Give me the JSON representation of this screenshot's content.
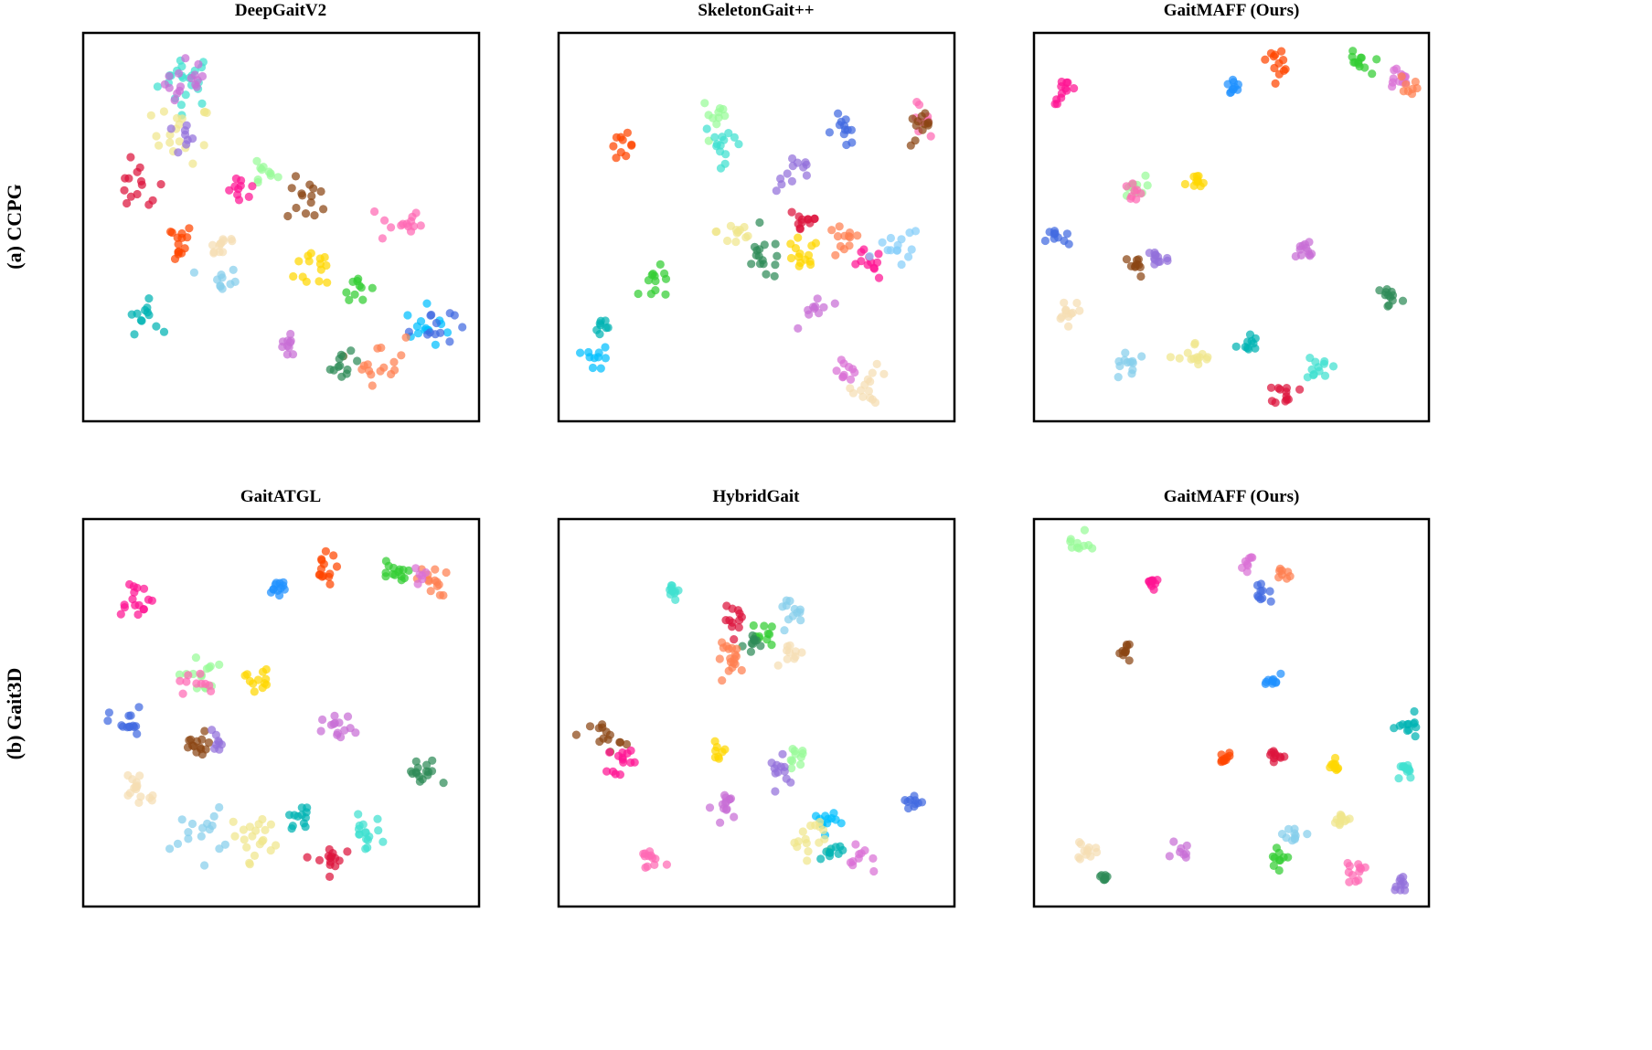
{
  "colors": {
    "pink": "#ff1493",
    "dodger": "#1e90ff",
    "orangered": "#ff4500",
    "lime": "#32cd32",
    "plum": "#da70d6",
    "salmon": "#ff7f50",
    "mintgreen": "#98fb98",
    "gold": "#ffd700",
    "royal": "#4169e1",
    "brown": "#8b4513",
    "purple": "#9370db",
    "orchid": "#c86ed6",
    "wheat": "#f5deb3",
    "skyblue": "#87ceeb",
    "khaki": "#f0e68c",
    "cyan": "#00bcd4",
    "turquoise": "#40e0d0",
    "crimson": "#dc143c",
    "seagreen": "#2e8b57",
    "hotpink": "#ff69b4",
    "deepsky": "#00bfff",
    "green": "#22aa22",
    "lightsky": "#87cefa",
    "darkcyan": "#00b3b3"
  },
  "rows": [
    {
      "label": "(a) CCPG"
    },
    {
      "label": "(b) Gait3D"
    }
  ],
  "chart_data": [
    {
      "type": "scatter",
      "title": "DeepGaitV2",
      "xlabel": "",
      "ylabel": "",
      "axes": "hidden",
      "grid": false,
      "xlim": [
        0,
        100
      ],
      "ylim": [
        0,
        100
      ],
      "clusters": [
        {
          "color": "turquoise",
          "x": 26,
          "y": 88,
          "n": 22,
          "s": 3.5
        },
        {
          "color": "orchid",
          "x": 27,
          "y": 87,
          "n": 16,
          "s": 3.2
        },
        {
          "color": "khaki",
          "x": 25,
          "y": 74,
          "n": 18,
          "s": 3.8
        },
        {
          "color": "purple",
          "x": 24,
          "y": 73,
          "n": 8,
          "s": 2.5
        },
        {
          "color": "crimson",
          "x": 14,
          "y": 60,
          "n": 14,
          "s": 3.2
        },
        {
          "color": "mintgreen",
          "x": 45,
          "y": 64,
          "n": 10,
          "s": 2
        },
        {
          "color": "pink",
          "x": 40,
          "y": 59,
          "n": 10,
          "s": 1.8
        },
        {
          "color": "brown",
          "x": 57,
          "y": 57,
          "n": 14,
          "s": 2.8
        },
        {
          "color": "hotpink",
          "x": 80,
          "y": 51,
          "n": 14,
          "s": 2.8
        },
        {
          "color": "orangered",
          "x": 23,
          "y": 46,
          "n": 14,
          "s": 2.5
        },
        {
          "color": "wheat",
          "x": 35,
          "y": 46,
          "n": 12,
          "s": 2.2
        },
        {
          "color": "gold",
          "x": 60,
          "y": 40,
          "n": 14,
          "s": 3.2
        },
        {
          "color": "skyblue",
          "x": 35,
          "y": 36,
          "n": 10,
          "s": 2
        },
        {
          "color": "lime",
          "x": 69,
          "y": 35,
          "n": 10,
          "s": 1.8
        },
        {
          "color": "darkcyan",
          "x": 15,
          "y": 27,
          "n": 12,
          "s": 2
        },
        {
          "color": "deepsky",
          "x": 87,
          "y": 24,
          "n": 14,
          "s": 2.8
        },
        {
          "color": "royal",
          "x": 88,
          "y": 25,
          "n": 12,
          "s": 2.8
        },
        {
          "color": "orchid",
          "x": 52,
          "y": 19,
          "n": 10,
          "s": 2
        },
        {
          "color": "salmon",
          "x": 75,
          "y": 16,
          "n": 16,
          "s": 3.2
        },
        {
          "color": "seagreen",
          "x": 66,
          "y": 14,
          "n": 12,
          "s": 1.8
        }
      ]
    },
    {
      "type": "scatter",
      "title": "SkeletonGait++",
      "xlabel": "",
      "ylabel": "",
      "axes": "hidden",
      "grid": false,
      "xlim": [
        0,
        100
      ],
      "ylim": [
        0,
        100
      ],
      "clusters": [
        {
          "color": "mintgreen",
          "x": 40,
          "y": 79,
          "n": 10,
          "s": 2
        },
        {
          "color": "turquoise",
          "x": 42,
          "y": 72,
          "n": 14,
          "s": 2.6
        },
        {
          "color": "orangered",
          "x": 16,
          "y": 71,
          "n": 10,
          "s": 1.5
        },
        {
          "color": "royal",
          "x": 72,
          "y": 75,
          "n": 12,
          "s": 2.2
        },
        {
          "color": "hotpink",
          "x": 90,
          "y": 78,
          "n": 8,
          "s": 1.8
        },
        {
          "color": "brown",
          "x": 92,
          "y": 75,
          "n": 12,
          "s": 2.2
        },
        {
          "color": "purple",
          "x": 60,
          "y": 64,
          "n": 12,
          "s": 2.5
        },
        {
          "color": "crimson",
          "x": 62,
          "y": 52,
          "n": 12,
          "s": 2.2
        },
        {
          "color": "khaki",
          "x": 45,
          "y": 49,
          "n": 12,
          "s": 2.5
        },
        {
          "color": "seagreen",
          "x": 52,
          "y": 42,
          "n": 16,
          "s": 2.8
        },
        {
          "color": "gold",
          "x": 61,
          "y": 42,
          "n": 14,
          "s": 2.5
        },
        {
          "color": "salmon",
          "x": 72,
          "y": 46,
          "n": 12,
          "s": 2.2
        },
        {
          "color": "pink",
          "x": 78,
          "y": 40,
          "n": 12,
          "s": 2
        },
        {
          "color": "lightsky",
          "x": 86,
          "y": 45,
          "n": 14,
          "s": 2.8
        },
        {
          "color": "lime",
          "x": 25,
          "y": 35,
          "n": 12,
          "s": 2.2
        },
        {
          "color": "orchid",
          "x": 65,
          "y": 29,
          "n": 10,
          "s": 2
        },
        {
          "color": "darkcyan",
          "x": 12,
          "y": 25,
          "n": 8,
          "s": 1.5
        },
        {
          "color": "deepsky",
          "x": 10,
          "y": 16,
          "n": 10,
          "s": 1.6
        },
        {
          "color": "plum",
          "x": 72,
          "y": 14,
          "n": 10,
          "s": 1.8
        },
        {
          "color": "wheat",
          "x": 79,
          "y": 9,
          "n": 14,
          "s": 2.4
        }
      ]
    },
    {
      "type": "scatter",
      "title": "GaitMAFF (Ours)",
      "xlabel": "",
      "ylabel": "",
      "axes": "hidden",
      "grid": false,
      "xlim": [
        0,
        100
      ],
      "ylim": [
        0,
        100
      ],
      "clusters": [
        {
          "color": "pink",
          "x": 8,
          "y": 85,
          "n": 12,
          "s": 1.6
        },
        {
          "color": "dodger",
          "x": 50,
          "y": 86,
          "n": 10,
          "s": 1.2
        },
        {
          "color": "orangered",
          "x": 62,
          "y": 93,
          "n": 12,
          "s": 1.5
        },
        {
          "color": "lime",
          "x": 82,
          "y": 92,
          "n": 12,
          "s": 1.5
        },
        {
          "color": "plum",
          "x": 92,
          "y": 88,
          "n": 12,
          "s": 1.6
        },
        {
          "color": "salmon",
          "x": 95,
          "y": 87,
          "n": 8,
          "s": 1.2
        },
        {
          "color": "mintgreen",
          "x": 25,
          "y": 60,
          "n": 12,
          "s": 1.6
        },
        {
          "color": "hotpink",
          "x": 25,
          "y": 59,
          "n": 8,
          "s": 1.6
        },
        {
          "color": "gold",
          "x": 41,
          "y": 61,
          "n": 10,
          "s": 1.3
        },
        {
          "color": "royal",
          "x": 6,
          "y": 47,
          "n": 10,
          "s": 1.5
        },
        {
          "color": "brown",
          "x": 26,
          "y": 40,
          "n": 10,
          "s": 1.5
        },
        {
          "color": "purple",
          "x": 31,
          "y": 42,
          "n": 12,
          "s": 1.6
        },
        {
          "color": "orchid",
          "x": 69,
          "y": 44,
          "n": 12,
          "s": 1.6
        },
        {
          "color": "seagreen",
          "x": 90,
          "y": 32,
          "n": 12,
          "s": 1.6
        },
        {
          "color": "wheat",
          "x": 9,
          "y": 29,
          "n": 12,
          "s": 1.6
        },
        {
          "color": "skyblue",
          "x": 24,
          "y": 15,
          "n": 12,
          "s": 2.2
        },
        {
          "color": "khaki",
          "x": 41,
          "y": 16,
          "n": 14,
          "s": 2.2
        },
        {
          "color": "darkcyan",
          "x": 54,
          "y": 20,
          "n": 10,
          "s": 1.3
        },
        {
          "color": "turquoise",
          "x": 72,
          "y": 14,
          "n": 12,
          "s": 1.6
        },
        {
          "color": "crimson",
          "x": 64,
          "y": 7,
          "n": 12,
          "s": 1.5
        }
      ]
    },
    {
      "type": "scatter",
      "title": "GaitATGL",
      "xlabel": "",
      "ylabel": "",
      "axes": "hidden",
      "grid": false,
      "xlim": [
        0,
        100
      ],
      "ylim": [
        0,
        100
      ],
      "clusters": [
        {
          "color": "pink",
          "x": 13,
          "y": 80,
          "n": 16,
          "s": 2.4
        },
        {
          "color": "dodger",
          "x": 49,
          "y": 82,
          "n": 12,
          "s": 1.5
        },
        {
          "color": "orangered",
          "x": 60,
          "y": 87,
          "n": 14,
          "s": 2
        },
        {
          "color": "lime",
          "x": 78,
          "y": 86,
          "n": 14,
          "s": 1.8
        },
        {
          "color": "salmon",
          "x": 88,
          "y": 84,
          "n": 14,
          "s": 2
        },
        {
          "color": "plum",
          "x": 86,
          "y": 85,
          "n": 6,
          "s": 1.2
        },
        {
          "color": "mintgreen",
          "x": 29,
          "y": 60,
          "n": 14,
          "s": 2.4
        },
        {
          "color": "hotpink",
          "x": 28,
          "y": 57,
          "n": 10,
          "s": 2.2
        },
        {
          "color": "gold",
          "x": 44,
          "y": 59,
          "n": 12,
          "s": 1.6
        },
        {
          "color": "royal",
          "x": 11,
          "y": 47,
          "n": 14,
          "s": 2.2
        },
        {
          "color": "brown",
          "x": 29,
          "y": 41,
          "n": 14,
          "s": 2
        },
        {
          "color": "purple",
          "x": 34,
          "y": 43,
          "n": 8,
          "s": 1.6
        },
        {
          "color": "orchid",
          "x": 65,
          "y": 45,
          "n": 14,
          "s": 2.2
        },
        {
          "color": "seagreen",
          "x": 86,
          "y": 34,
          "n": 16,
          "s": 2.2
        },
        {
          "color": "wheat",
          "x": 14,
          "y": 31,
          "n": 16,
          "s": 2.6
        },
        {
          "color": "skyblue",
          "x": 29,
          "y": 19,
          "n": 16,
          "s": 3.2
        },
        {
          "color": "khaki",
          "x": 44,
          "y": 18,
          "n": 20,
          "s": 3.2
        },
        {
          "color": "darkcyan",
          "x": 55,
          "y": 23,
          "n": 12,
          "s": 1.5
        },
        {
          "color": "turquoise",
          "x": 71,
          "y": 19,
          "n": 16,
          "s": 2.2
        },
        {
          "color": "crimson",
          "x": 62,
          "y": 12,
          "n": 14,
          "s": 1.8
        }
      ]
    },
    {
      "type": "scatter",
      "title": "HybridGait",
      "xlabel": "",
      "ylabel": "",
      "axes": "hidden",
      "grid": false,
      "xlim": [
        0,
        100
      ],
      "ylim": [
        0,
        100
      ],
      "clusters": [
        {
          "color": "turquoise",
          "x": 29,
          "y": 82,
          "n": 10,
          "s": 1.4
        },
        {
          "color": "crimson",
          "x": 45,
          "y": 74,
          "n": 12,
          "s": 1.6
        },
        {
          "color": "skyblue",
          "x": 58,
          "y": 76,
          "n": 12,
          "s": 1.8
        },
        {
          "color": "lime",
          "x": 52,
          "y": 70,
          "n": 10,
          "s": 1.6
        },
        {
          "color": "seagreen",
          "x": 50,
          "y": 68,
          "n": 10,
          "s": 1.6
        },
        {
          "color": "salmon",
          "x": 44,
          "y": 64,
          "n": 18,
          "s": 2
        },
        {
          "color": "wheat",
          "x": 60,
          "y": 65,
          "n": 10,
          "s": 1.6
        },
        {
          "color": "brown",
          "x": 12,
          "y": 44,
          "n": 14,
          "s": 2
        },
        {
          "color": "pink",
          "x": 16,
          "y": 38,
          "n": 14,
          "s": 1.8
        },
        {
          "color": "gold",
          "x": 40,
          "y": 40,
          "n": 8,
          "s": 1.2
        },
        {
          "color": "mintgreen",
          "x": 60,
          "y": 38,
          "n": 10,
          "s": 1.4
        },
        {
          "color": "purple",
          "x": 57,
          "y": 35,
          "n": 12,
          "s": 1.8
        },
        {
          "color": "royal",
          "x": 89,
          "y": 27,
          "n": 10,
          "s": 1.4
        },
        {
          "color": "orchid",
          "x": 43,
          "y": 26,
          "n": 14,
          "s": 2
        },
        {
          "color": "deepsky",
          "x": 67,
          "y": 22,
          "n": 12,
          "s": 1.6
        },
        {
          "color": "khaki",
          "x": 63,
          "y": 18,
          "n": 16,
          "s": 2.6
        },
        {
          "color": "darkcyan",
          "x": 69,
          "y": 14,
          "n": 10,
          "s": 1.4
        },
        {
          "color": "plum",
          "x": 77,
          "y": 12,
          "n": 10,
          "s": 1.8
        },
        {
          "color": "hotpink",
          "x": 23,
          "y": 12,
          "n": 12,
          "s": 1.6
        }
      ]
    },
    {
      "type": "scatter",
      "title": "GaitMAFF (Ours)",
      "xlabel": "",
      "ylabel": "",
      "axes": "hidden",
      "grid": false,
      "xlim": [
        0,
        100
      ],
      "ylim": [
        0,
        100
      ],
      "clusters": [
        {
          "color": "mintgreen",
          "x": 11,
          "y": 93,
          "n": 10,
          "s": 1.6
        },
        {
          "color": "plum",
          "x": 54,
          "y": 89,
          "n": 8,
          "s": 1.1
        },
        {
          "color": "salmon",
          "x": 63,
          "y": 86,
          "n": 8,
          "s": 1.1
        },
        {
          "color": "pink",
          "x": 30,
          "y": 84,
          "n": 10,
          "s": 0.9
        },
        {
          "color": "royal",
          "x": 58,
          "y": 80,
          "n": 10,
          "s": 1.2
        },
        {
          "color": "brown",
          "x": 23,
          "y": 66,
          "n": 10,
          "s": 1
        },
        {
          "color": "dodger",
          "x": 61,
          "y": 58,
          "n": 10,
          "s": 0.9
        },
        {
          "color": "darkcyan",
          "x": 95,
          "y": 46,
          "n": 12,
          "s": 1.5
        },
        {
          "color": "turquoise",
          "x": 94,
          "y": 35,
          "n": 12,
          "s": 1.4
        },
        {
          "color": "orangered",
          "x": 48,
          "y": 38,
          "n": 10,
          "s": 0.9
        },
        {
          "color": "crimson",
          "x": 61,
          "y": 39,
          "n": 10,
          "s": 0.8
        },
        {
          "color": "gold",
          "x": 76,
          "y": 36,
          "n": 10,
          "s": 0.9
        },
        {
          "color": "khaki",
          "x": 78,
          "y": 22,
          "n": 12,
          "s": 1.3
        },
        {
          "color": "skyblue",
          "x": 66,
          "y": 19,
          "n": 10,
          "s": 1.4
        },
        {
          "color": "wheat",
          "x": 13,
          "y": 14,
          "n": 12,
          "s": 1.4
        },
        {
          "color": "orchid",
          "x": 37,
          "y": 14,
          "n": 8,
          "s": 1.1
        },
        {
          "color": "lime",
          "x": 62,
          "y": 12,
          "n": 10,
          "s": 1.2
        },
        {
          "color": "hotpink",
          "x": 81,
          "y": 9,
          "n": 12,
          "s": 1.3
        },
        {
          "color": "seagreen",
          "x": 18,
          "y": 8,
          "n": 8,
          "s": 0.9
        },
        {
          "color": "purple",
          "x": 93,
          "y": 6,
          "n": 10,
          "s": 1.2
        }
      ]
    }
  ]
}
